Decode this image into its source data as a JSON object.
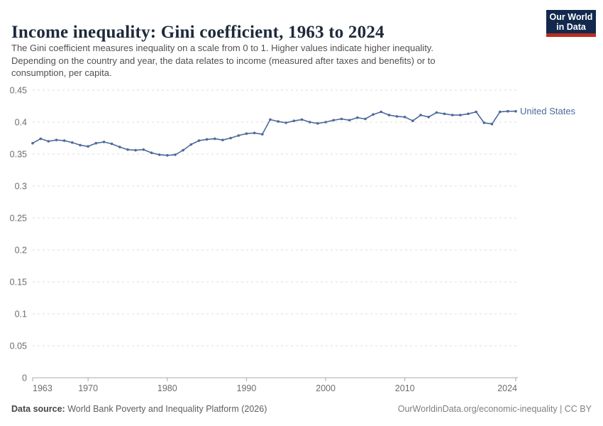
{
  "header": {
    "title": "Income inequality: Gini coefficient, 1963 to 2024",
    "subtitle_lines": [
      "The Gini coefficient measures inequality on a scale from 0 to 1. Higher values indicate higher inequality.",
      "Depending on the country and year, the data relates to income (measured after taxes and benefits) or to",
      "consumption, per capita."
    ],
    "logo": {
      "line1": "Our World",
      "line2": "in Data",
      "bg_color": "#12294d",
      "accent_color": "#bc2d1e",
      "text_color": "#ffffff"
    }
  },
  "chart_data": {
    "type": "line",
    "title": "Income inequality: Gini coefficient, 1963 to 2024",
    "xlabel": "",
    "ylabel": "",
    "xlim": [
      1963,
      2024
    ],
    "ylim": [
      0,
      0.45
    ],
    "grid": "horizontal-dashed",
    "legend_position": "end-of-line-label",
    "end_label": "United States",
    "x_ticks": [
      1963,
      1970,
      1980,
      1990,
      2000,
      2010,
      2024
    ],
    "y_ticks": [
      0,
      0.05,
      0.1,
      0.15,
      0.2,
      0.25,
      0.3,
      0.35,
      0.4,
      0.45
    ],
    "y_tick_labels": [
      "0",
      "0.05",
      "0.1",
      "0.15",
      "0.2",
      "0.25",
      "0.3",
      "0.35",
      "0.4",
      "0.45"
    ],
    "x": [
      1963,
      1964,
      1965,
      1966,
      1967,
      1968,
      1969,
      1970,
      1971,
      1972,
      1973,
      1974,
      1975,
      1976,
      1977,
      1978,
      1979,
      1980,
      1981,
      1982,
      1983,
      1984,
      1985,
      1986,
      1987,
      1988,
      1989,
      1990,
      1991,
      1992,
      1993,
      1994,
      1995,
      1996,
      1997,
      1998,
      1999,
      2000,
      2001,
      2002,
      2003,
      2004,
      2005,
      2006,
      2007,
      2008,
      2009,
      2010,
      2011,
      2012,
      2013,
      2014,
      2015,
      2016,
      2017,
      2018,
      2019,
      2020,
      2021,
      2022,
      2023,
      2024
    ],
    "series": [
      {
        "name": "United States",
        "color": "#4C6A9C",
        "values": [
          0.367,
          0.374,
          0.37,
          0.372,
          0.371,
          0.368,
          0.364,
          0.362,
          0.367,
          0.369,
          0.366,
          0.361,
          0.357,
          0.356,
          0.357,
          0.352,
          0.349,
          0.348,
          0.349,
          0.356,
          0.365,
          0.371,
          0.373,
          0.374,
          0.372,
          0.375,
          0.379,
          0.382,
          0.383,
          0.381,
          0.404,
          0.401,
          0.399,
          0.402,
          0.404,
          0.4,
          0.398,
          0.4,
          0.403,
          0.405,
          0.403,
          0.407,
          0.405,
          0.412,
          0.416,
          0.411,
          0.409,
          0.408,
          0.402,
          0.411,
          0.408,
          0.415,
          0.413,
          0.411,
          0.411,
          0.413,
          0.416,
          0.399,
          0.397,
          0.416,
          0.417,
          0.417
        ]
      }
    ],
    "axis_color": "#a9a9a9",
    "gridline_color": "#dcdcdc",
    "tick_label_color": "#6d6d6d"
  },
  "footer": {
    "datasource_label": "Data source:",
    "datasource_value": " World Bank Poverty and Inequality Platform (2026)",
    "credit": "OurWorldinData.org/economic-inequality | CC BY"
  }
}
